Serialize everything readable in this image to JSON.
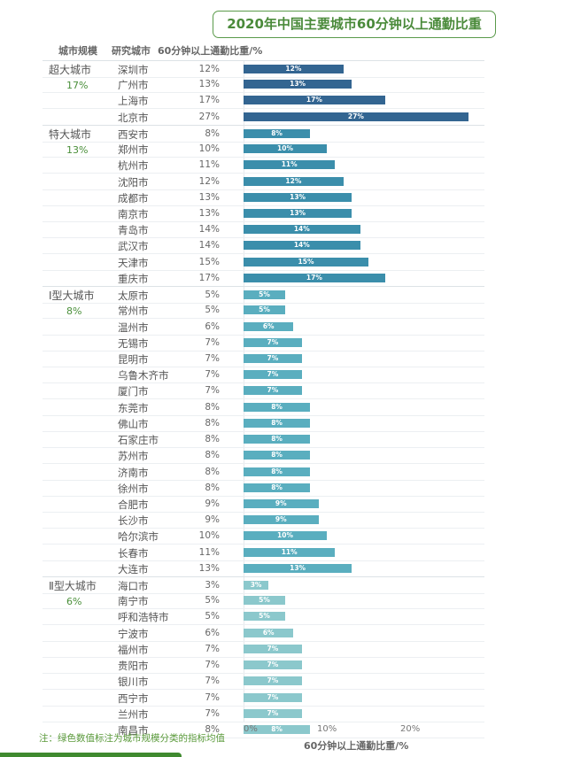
{
  "title": "2020年中国主要城市60分钟以上通勤比重",
  "headers": {
    "scale": "城市规模",
    "city": "研究城市",
    "value": "60分钟以上通勤比重/%"
  },
  "note": "注：绿色数值标注为城市规模分类的指标均值",
  "chart_data": {
    "type": "bar",
    "orientation": "horizontal",
    "xlabel": "60分钟以上通勤比重/%",
    "xlim": [
      0,
      28
    ],
    "xticks": [
      "0%",
      "10%",
      "20%"
    ],
    "groups": [
      {
        "name": "超大城市",
        "avg": "17%",
        "color": "#336591",
        "cities": [
          "深圳市",
          "广州市",
          "上海市",
          "北京市"
        ],
        "values": [
          12,
          13,
          17,
          27
        ]
      },
      {
        "name": "特大城市",
        "avg": "13%",
        "color": "#3b8eab",
        "cities": [
          "西安市",
          "郑州市",
          "杭州市",
          "沈阳市",
          "成都市",
          "南京市",
          "青岛市",
          "武汉市",
          "天津市",
          "重庆市"
        ],
        "values": [
          8,
          10,
          11,
          12,
          13,
          13,
          14,
          14,
          15,
          17
        ]
      },
      {
        "name": "Ⅰ型大城市",
        "avg": "8%",
        "color": "#5aaebf",
        "cities": [
          "太原市",
          "常州市",
          "温州市",
          "无锡市",
          "昆明市",
          "乌鲁木齐市",
          "厦门市",
          "东莞市",
          "佛山市",
          "石家庄市",
          "苏州市",
          "济南市",
          "徐州市",
          "合肥市",
          "长沙市",
          "哈尔滨市",
          "长春市",
          "大连市"
        ],
        "values": [
          5,
          5,
          6,
          7,
          7,
          7,
          7,
          8,
          8,
          8,
          8,
          8,
          8,
          9,
          9,
          10,
          11,
          13
        ]
      },
      {
        "name": "Ⅱ型大城市",
        "avg": "6%",
        "color": "#8bc8cc",
        "cities": [
          "海口市",
          "南宁市",
          "呼和浩特市",
          "宁波市",
          "福州市",
          "贵阳市",
          "银川市",
          "西宁市",
          "兰州市",
          "南昌市"
        ],
        "values": [
          3,
          5,
          5,
          6,
          7,
          7,
          7,
          7,
          7,
          8
        ]
      }
    ]
  }
}
